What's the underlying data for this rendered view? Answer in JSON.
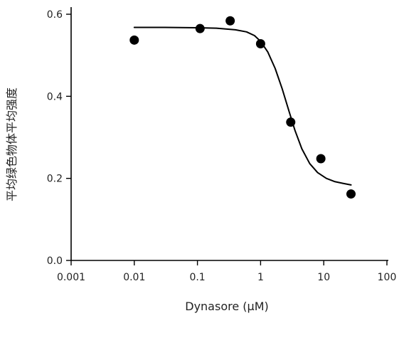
{
  "chart_data": {
    "type": "scatter",
    "title": "",
    "xlabel": "Dynasore (μM)",
    "ylabel": "平均绿色物体平均强度",
    "x_scale": "log",
    "xlim": [
      0.001,
      100
    ],
    "ylim": [
      0.0,
      0.6
    ],
    "x_ticks": [
      0.001,
      0.01,
      0.1,
      1,
      10,
      100
    ],
    "x_tick_labels": [
      "0.001",
      "0.01",
      "0.1",
      "1",
      "10",
      "100"
    ],
    "y_ticks": [
      0.0,
      0.2,
      0.4,
      0.6
    ],
    "y_tick_labels": [
      "0.0",
      "0.2",
      "0.4",
      "0.6"
    ],
    "grid": false,
    "legend": "none",
    "series": [
      {
        "kind": "points",
        "x": [
          0.01,
          0.11,
          0.33,
          1.0,
          3.0,
          9.0,
          27.0
        ],
        "y": [
          0.537,
          0.565,
          0.584,
          0.528,
          0.337,
          0.248,
          0.162
        ],
        "color": "#000000"
      },
      {
        "kind": "fit-line",
        "x": [
          0.01,
          0.03,
          0.1,
          0.2,
          0.4,
          0.6,
          0.8,
          1.0,
          1.3,
          1.7,
          2.2,
          2.8,
          3.5,
          4.5,
          6.0,
          8.0,
          11.0,
          15.0,
          20.0,
          27.0
        ],
        "y": [
          0.568,
          0.568,
          0.567,
          0.566,
          0.562,
          0.557,
          0.548,
          0.534,
          0.508,
          0.468,
          0.418,
          0.365,
          0.317,
          0.272,
          0.236,
          0.214,
          0.2,
          0.192,
          0.188,
          0.184
        ],
        "color": "#000000"
      }
    ]
  }
}
